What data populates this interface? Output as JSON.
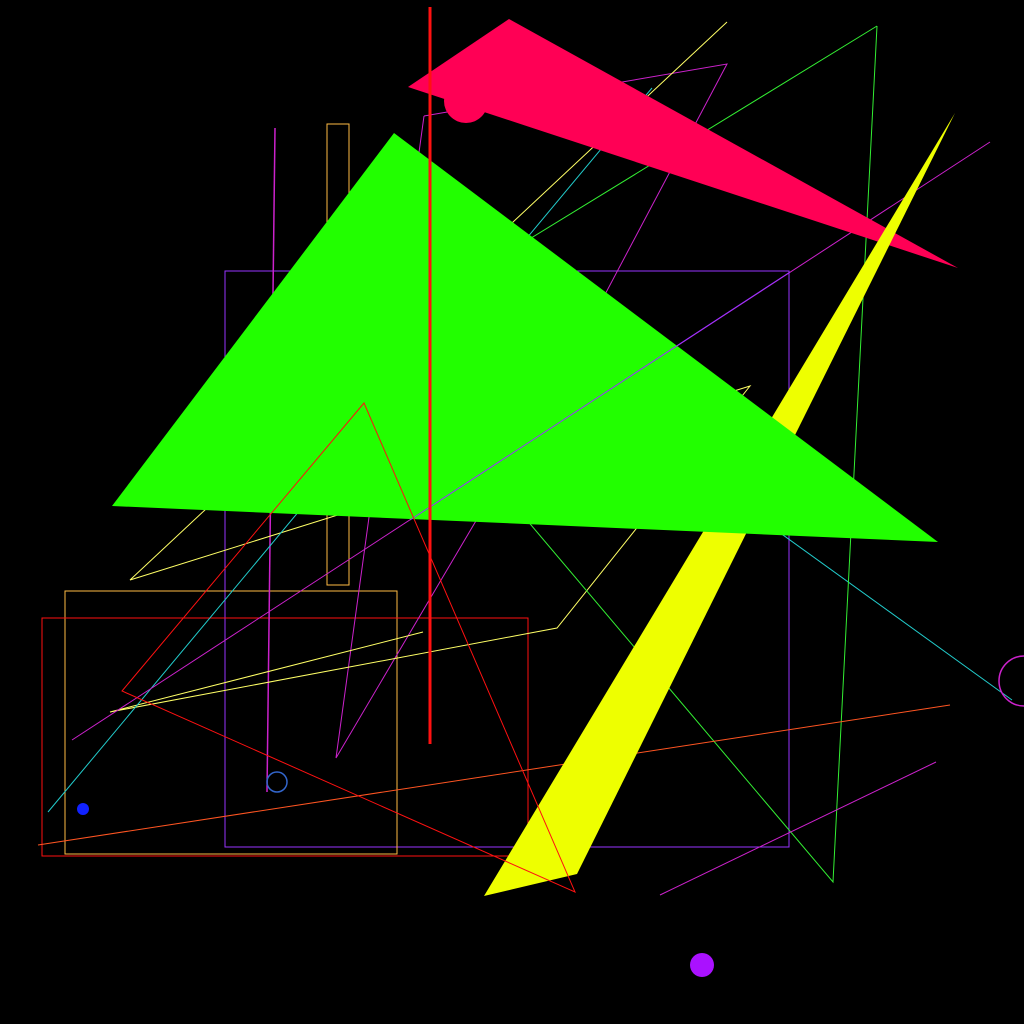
{
  "background": "#000000",
  "palette": {
    "pink": "#ff0055",
    "green": "#22ff00",
    "yellow": "#eeff00",
    "violet": "#9933ff",
    "magenta": "#cc22cc",
    "red": "#ff1111",
    "crimson": "#ff2244",
    "orange": "#ff5522",
    "gold": "#ffbb44",
    "lime": "#33ee33",
    "light_yellow": "#ffff66",
    "cyan": "#22cccc",
    "blue": "#1122ff",
    "purple": "#aa11ff",
    "steel_blue": "#3366cc"
  }
}
